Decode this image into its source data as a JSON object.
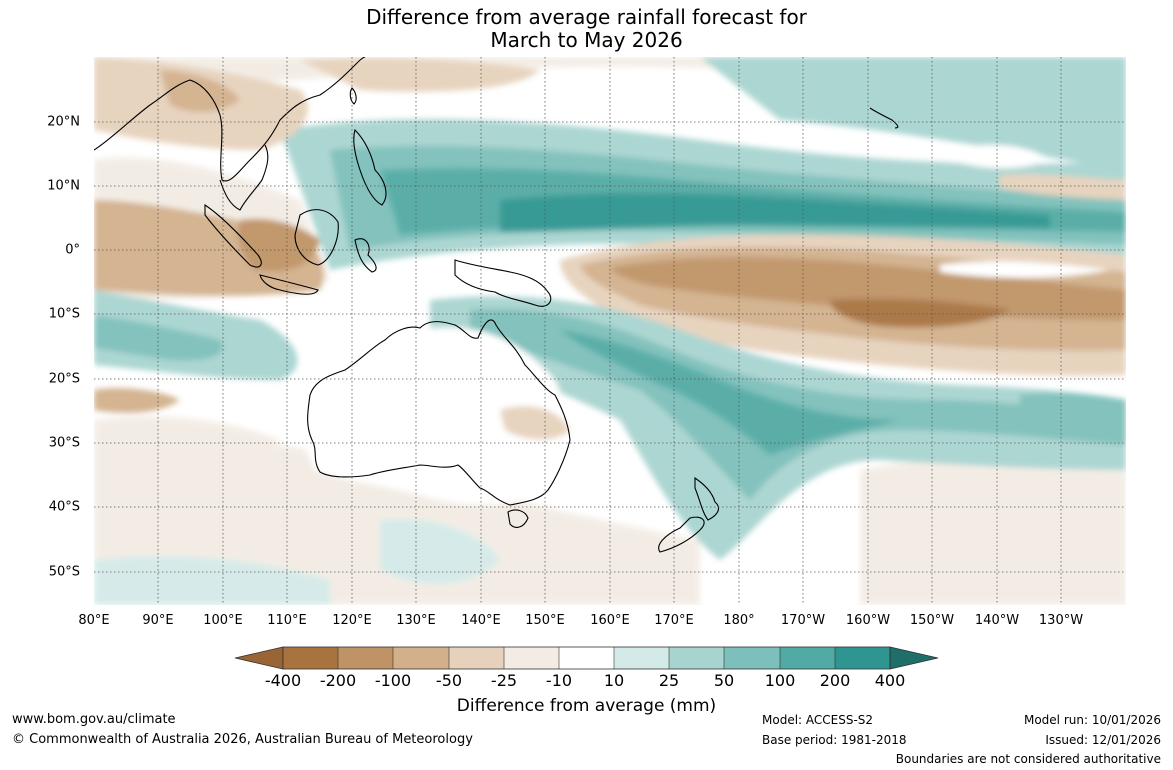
{
  "title": {
    "line1": "Difference from average rainfall forecast for",
    "line2": "March to May 2026"
  },
  "map": {
    "longitude_labels": [
      "80°E",
      "90°E",
      "100°E",
      "110°E",
      "120°E",
      "130°E",
      "140°E",
      "150°E",
      "160°E",
      "170°E",
      "180°",
      "170°W",
      "160°W",
      "150°W",
      "140°W",
      "130°W"
    ],
    "latitude_labels": [
      "20°N",
      "10°N",
      "0°",
      "10°S",
      "20°S",
      "30°S",
      "40°S",
      "50°S"
    ],
    "lon_range": [
      80,
      242
    ],
    "lat_range": [
      -55,
      30
    ]
  },
  "colorbar": {
    "tick_labels": [
      "-400",
      "-200",
      "-100",
      "-50",
      "-25",
      "-10",
      "10",
      "25",
      "50",
      "100",
      "200",
      "400"
    ],
    "colors": [
      "#a8733f",
      "#bf9366",
      "#d2b08c",
      "#e6d2bc",
      "#f3ece4",
      "#ffffff",
      "#d4eae8",
      "#a8d4d0",
      "#7dbfba",
      "#52aaa4",
      "#2e9590",
      "#1e6e6a"
    ],
    "title": "Difference from average (mm)"
  },
  "footer": {
    "website": "www.bom.gov.au/climate",
    "copyright": "© Commonwealth of Australia 2026, Australian Bureau of Meteorology",
    "model": "Model: ACCESS-S2",
    "base_period": "Base period: 1981-2018",
    "model_run": "Model run: 10/01/2026",
    "issued": "Issued: 12/01/2026",
    "disclaimer": "Boundaries are not considered authoritative"
  }
}
